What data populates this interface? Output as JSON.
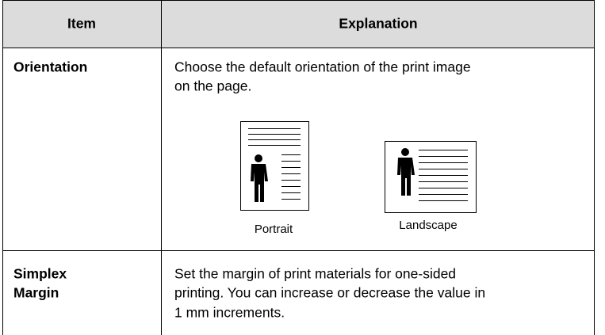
{
  "table": {
    "header": [
      "Item",
      "Explanation"
    ],
    "rows": [
      {
        "item": [
          "Orientation"
        ],
        "explanation": [
          "Choose the default orientation of the print image",
          "on the page."
        ],
        "images": [
          "Portrait",
          "Landscape"
        ]
      },
      {
        "item": [
          "Simplex",
          "Margin"
        ],
        "explanation": [
          "Set the margin of print materials for one-sided",
          "printing. You can increase or decrease the value in",
          "1 mm increments."
        ]
      }
    ]
  }
}
